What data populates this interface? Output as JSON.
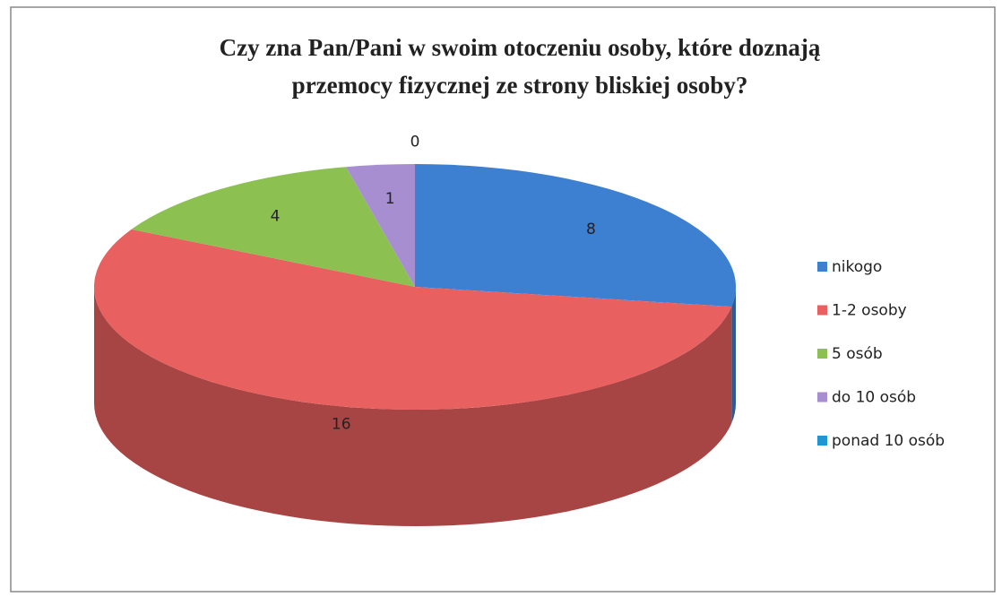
{
  "chart_data": {
    "type": "pie3d",
    "title": [
      "Czy zna Pan/Pani w swoim otoczeniu osoby, które doznają",
      "przemocy fizycznej ze strony bliskiej osoby?"
    ],
    "categories": [
      "nikogo",
      "1-2 osoby",
      "5 osób",
      "do 10 osób",
      "ponad 10 osób"
    ],
    "values": [
      8,
      16,
      4,
      1,
      0
    ],
    "colors": [
      "#3d7fd1",
      "#e8605f",
      "#8cc152",
      "#a78ed1",
      "#1f96d2"
    ],
    "legend": "right"
  }
}
